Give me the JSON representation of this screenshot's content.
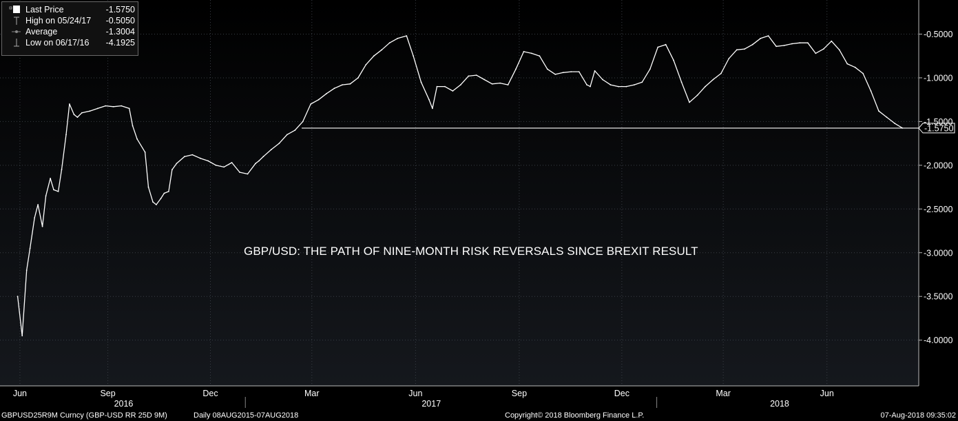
{
  "chart_data": {
    "type": "line",
    "title": "GBP/USD: THE PATH OF NINE-MONTH RISK REVERSALS SINCE BREXIT RESULT",
    "legend": {
      "placement": "top-left",
      "entries": [
        {
          "label": "Last Price",
          "value": "-1.5750"
        },
        {
          "label": "High on 05/24/17",
          "value": "-0.5050"
        },
        {
          "label": "Average",
          "value": "-1.3004"
        },
        {
          "label": "Low on 06/17/16",
          "value": "-4.1925"
        }
      ]
    },
    "last_value": -1.575,
    "last_label": "-1.5750",
    "ylim": [
      -4.5,
      -0.2
    ],
    "y_ticks": [
      "-0.5000",
      "-1.0000",
      "-1.5000",
      "-2.0000",
      "-2.5000",
      "-3.0000",
      "-3.5000",
      "-4.0000"
    ],
    "y_tick_values": [
      -0.5,
      -1.0,
      -1.5,
      -2.0,
      -2.5,
      -3.0,
      -3.5,
      -4.0
    ],
    "x_month_ticks": [
      "Jun",
      "Sep",
      "Dec",
      "Mar",
      "Jun",
      "Sep",
      "Dec",
      "Mar",
      "Jun"
    ],
    "x_year_labels": [
      "2016",
      "2017",
      "2018"
    ],
    "grid": true,
    "series": [
      {
        "x": [
          "2016-06-13",
          "2016-06-17",
          "2016-06-21",
          "2016-06-24",
          "2016-06-28",
          "2016-07-01",
          "2016-07-05",
          "2016-07-08",
          "2016-07-12",
          "2016-07-15",
          "2016-07-19",
          "2016-07-22",
          "2016-07-26",
          "2016-07-29",
          "2016-08-02",
          "2016-08-05",
          "2016-08-09",
          "2016-08-16",
          "2016-08-23",
          "2016-08-30",
          "2016-09-06",
          "2016-09-13",
          "2016-09-20",
          "2016-09-23",
          "2016-09-27",
          "2016-10-04",
          "2016-10-07",
          "2016-10-11",
          "2016-10-14",
          "2016-10-18",
          "2016-10-21",
          "2016-10-25",
          "2016-10-28",
          "2016-11-01",
          "2016-11-08",
          "2016-11-15",
          "2016-11-22",
          "2016-11-29",
          "2016-12-06",
          "2016-12-13",
          "2016-12-20",
          "2016-12-27",
          "2017-01-03",
          "2017-01-10",
          "2017-01-13",
          "2017-01-17",
          "2017-01-24",
          "2017-01-31",
          "2017-02-07",
          "2017-02-14",
          "2017-02-21",
          "2017-02-28",
          "2017-03-07",
          "2017-03-14",
          "2017-03-21",
          "2017-03-28",
          "2017-04-04",
          "2017-04-11",
          "2017-04-18",
          "2017-04-25",
          "2017-05-02",
          "2017-05-09",
          "2017-05-16",
          "2017-05-24",
          "2017-05-30",
          "2017-06-06",
          "2017-06-13",
          "2017-06-16",
          "2017-06-20",
          "2017-06-27",
          "2017-07-04",
          "2017-07-11",
          "2017-07-18",
          "2017-07-25",
          "2017-08-01",
          "2017-08-08",
          "2017-08-15",
          "2017-08-22",
          "2017-08-29",
          "2017-09-05",
          "2017-09-12",
          "2017-09-19",
          "2017-09-26",
          "2017-10-03",
          "2017-10-10",
          "2017-10-17",
          "2017-10-24",
          "2017-10-31",
          "2017-11-03",
          "2017-11-07",
          "2017-11-14",
          "2017-11-21",
          "2017-11-28",
          "2017-12-05",
          "2017-12-12",
          "2017-12-19",
          "2017-12-26",
          "2018-01-02",
          "2018-01-09",
          "2018-01-16",
          "2018-01-23",
          "2018-01-30",
          "2018-02-06",
          "2018-02-13",
          "2018-02-20",
          "2018-02-27",
          "2018-03-06",
          "2018-03-13",
          "2018-03-20",
          "2018-03-27",
          "2018-04-03",
          "2018-04-10",
          "2018-04-17",
          "2018-04-24",
          "2018-05-01",
          "2018-05-08",
          "2018-05-15",
          "2018-05-22",
          "2018-05-29",
          "2018-06-05",
          "2018-06-12",
          "2018-06-19",
          "2018-06-26",
          "2018-07-03",
          "2018-07-10",
          "2018-07-17",
          "2018-07-24",
          "2018-07-31",
          "2018-08-07"
        ],
        "values": [
          -3.5,
          -3.95,
          -3.2,
          -2.95,
          -2.6,
          -2.45,
          -2.7,
          -2.35,
          -2.15,
          -2.28,
          -2.3,
          -2.05,
          -1.65,
          -1.3,
          -1.42,
          -1.45,
          -1.4,
          -1.38,
          -1.35,
          -1.32,
          -1.33,
          -1.32,
          -1.35,
          -1.55,
          -1.7,
          -1.85,
          -2.25,
          -2.42,
          -2.45,
          -2.38,
          -2.32,
          -2.3,
          -2.05,
          -1.98,
          -1.9,
          -1.88,
          -1.92,
          -1.95,
          -2.0,
          -2.02,
          -1.97,
          -2.08,
          -2.1,
          -1.98,
          -1.95,
          -1.9,
          -1.82,
          -1.75,
          -1.65,
          -1.6,
          -1.5,
          -1.3,
          -1.25,
          -1.18,
          -1.12,
          -1.08,
          -1.07,
          -1.0,
          -0.85,
          -0.75,
          -0.68,
          -0.6,
          -0.55,
          -0.52,
          -0.75,
          -1.05,
          -1.25,
          -1.35,
          -1.1,
          -1.1,
          -1.15,
          -1.08,
          -0.98,
          -0.97,
          -1.02,
          -1.07,
          -1.06,
          -1.08,
          -0.9,
          -0.7,
          -0.72,
          -0.75,
          -0.9,
          -0.96,
          -0.94,
          -0.93,
          -0.93,
          -1.08,
          -1.1,
          -0.92,
          -1.02,
          -1.08,
          -1.1,
          -1.1,
          -1.08,
          -1.05,
          -0.9,
          -0.65,
          -0.62,
          -0.8,
          -1.05,
          -1.28,
          -1.2,
          -1.1,
          -1.02,
          -0.95,
          -0.78,
          -0.68,
          -0.67,
          -0.62,
          -0.55,
          -0.52,
          -0.64,
          -0.63,
          -0.61,
          -0.6,
          -0.6,
          -0.72,
          -0.67,
          -0.58,
          -0.68,
          -0.84,
          -0.88,
          -0.95,
          -1.15,
          -1.38,
          -1.45,
          -1.52,
          -1.575
        ]
      }
    ]
  },
  "footer": {
    "ticker": "GBPUSD25R9M Curncy (GBP-USD RR 25D 9M)",
    "range": "Daily 08AUG2015-07AUG2018",
    "copyright": "Copyright© 2018 Bloomberg Finance L.P.",
    "timestamp": "07-Aug-2018 09:35:02"
  }
}
